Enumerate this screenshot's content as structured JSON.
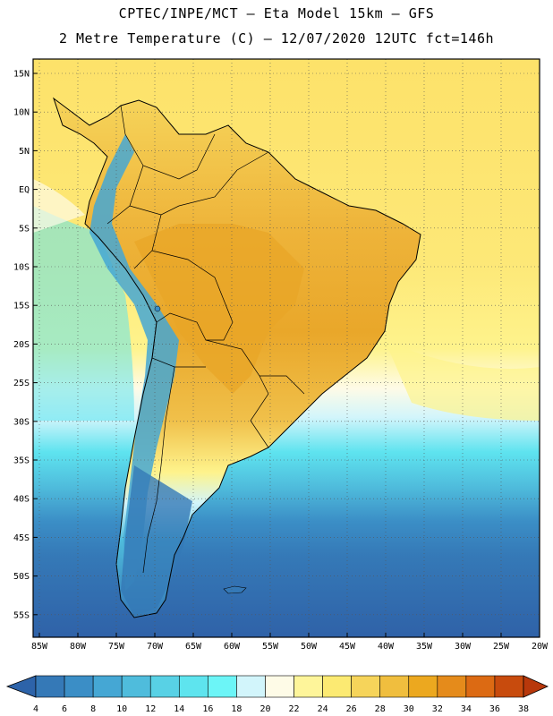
{
  "header": {
    "line1": "CPTEC/INPE/MCT –  Eta Model 15km – GFS",
    "line2": "2 Metre Temperature (C) – 12/07/2020 12UTC fct=146h"
  },
  "map": {
    "lat_labels": [
      "15N",
      "10N",
      "5N",
      "EQ",
      "5S",
      "10S",
      "15S",
      "20S",
      "25S",
      "30S",
      "35S",
      "40S",
      "45S",
      "50S",
      "55S"
    ],
    "lon_labels": [
      "85W",
      "80W",
      "75W",
      "70W",
      "65W",
      "60W",
      "55W",
      "50W",
      "45W",
      "40W",
      "35W",
      "30W",
      "25W",
      "20W"
    ],
    "colors": {
      "ocean_warm": "#fde26a",
      "ocean_mid": "#fef38c",
      "ocean_cool": "#5ee3ef",
      "ocean_cold": "#2f62a8",
      "land_hot": "#e8a627",
      "land_cold": "#3a7fbf"
    }
  },
  "colorbar": {
    "ticks": [
      "4",
      "6",
      "8",
      "10",
      "12",
      "14",
      "16",
      "18",
      "20",
      "22",
      "24",
      "26",
      "28",
      "30",
      "32",
      "34",
      "36",
      "38"
    ],
    "colors": [
      "#2d63a9",
      "#3579b7",
      "#3b8ec6",
      "#45a7d4",
      "#4fbcdc",
      "#58d1e5",
      "#5ee4ee",
      "#6cf5f7",
      "#d2f5fb",
      "#fefbe7",
      "#fef59a",
      "#fcea72",
      "#f6d45a",
      "#f0be3e",
      "#eca81f",
      "#e58b1b",
      "#dc6a13",
      "#c84b0d",
      "#b8380b"
    ]
  }
}
